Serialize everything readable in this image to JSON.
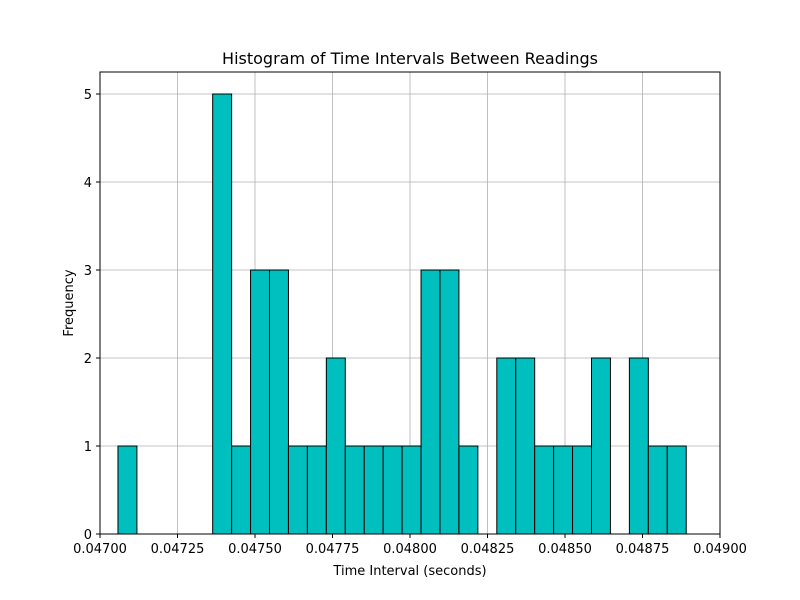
{
  "colors": {
    "bar_fill": "#00bfbf",
    "bar_edge": "#000000",
    "grid": "#b0b0b0"
  },
  "chart_data": {
    "type": "bar",
    "title": "Histogram of Time Intervals Between Readings",
    "xlabel": "Time Interval (seconds)",
    "ylabel": "Frequency",
    "xlim": [
      0.047,
      0.049
    ],
    "ylim": [
      0,
      5.25
    ],
    "grid": true,
    "x_ticks": [
      0.047,
      0.04725,
      0.0475,
      0.04775,
      0.048,
      0.04825,
      0.0485,
      0.04875,
      0.049
    ],
    "x_tick_labels": [
      "0.04700",
      "0.04725",
      "0.04750",
      "0.04775",
      "0.04800",
      "0.04825",
      "0.04850",
      "0.04875",
      "0.04900"
    ],
    "y_ticks": [
      0,
      1,
      2,
      3,
      4,
      5
    ],
    "y_tick_labels": [
      "0",
      "1",
      "2",
      "3",
      "4",
      "5"
    ],
    "bin_start": 0.047058,
    "bin_width": 6.11e-05,
    "values": [
      1,
      0,
      0,
      0,
      0,
      5,
      1,
      3,
      3,
      1,
      1,
      2,
      1,
      1,
      1,
      1,
      3,
      3,
      1,
      0,
      2,
      2,
      1,
      1,
      1,
      2,
      0,
      2,
      1,
      1
    ]
  }
}
